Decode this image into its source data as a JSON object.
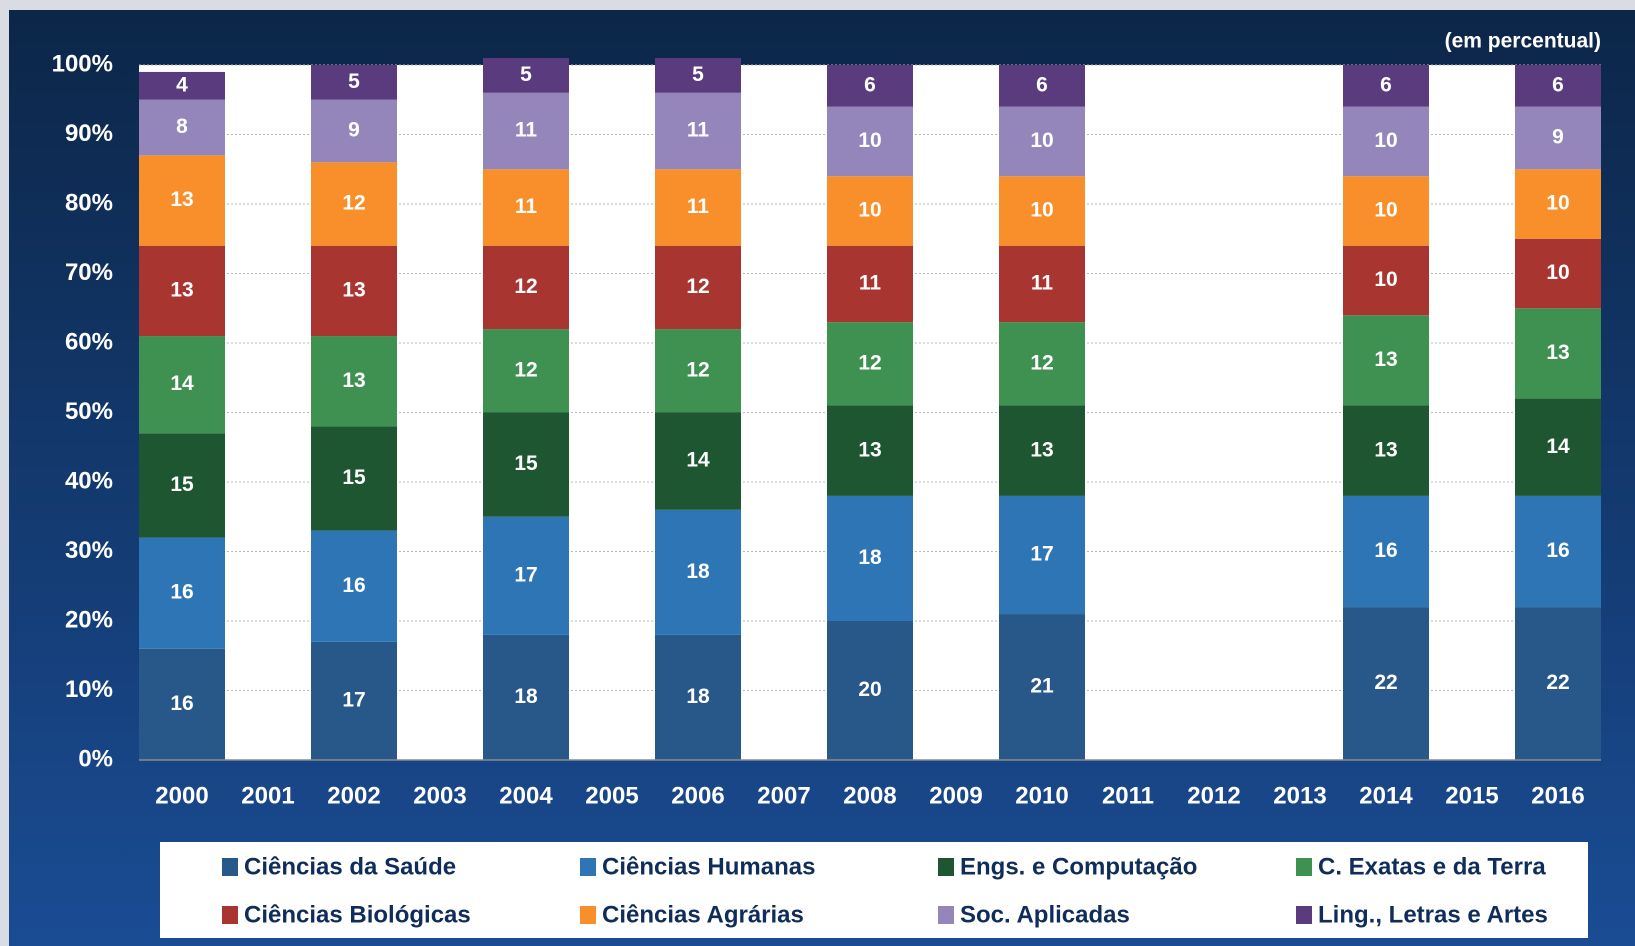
{
  "chart_data": {
    "type": "stacked_bar",
    "axis_note": "(em percentual)",
    "categories": [
      "2000",
      "2001",
      "2002",
      "2003",
      "2004",
      "2005",
      "2006",
      "2007",
      "2008",
      "2009",
      "2010",
      "2011",
      "2012",
      "2013",
      "2014",
      "2015",
      "2016"
    ],
    "series": [
      {
        "name": "Ciências da Saúde",
        "color": "#285889",
        "values": [
          16,
          null,
          17,
          null,
          18,
          null,
          18,
          null,
          20,
          null,
          21,
          null,
          null,
          null,
          22,
          null,
          22
        ]
      },
      {
        "name": "Ciências Humanas",
        "color": "#2e75b6",
        "values": [
          16,
          null,
          16,
          null,
          17,
          null,
          18,
          null,
          18,
          null,
          17,
          null,
          null,
          null,
          16,
          null,
          16
        ]
      },
      {
        "name": "Engs. e Computação",
        "color": "#1d5631",
        "values": [
          15,
          null,
          15,
          null,
          15,
          null,
          14,
          null,
          13,
          null,
          13,
          null,
          null,
          null,
          13,
          null,
          14
        ]
      },
      {
        "name": "C. Exatas e da Terra",
        "color": "#3e9150",
        "values": [
          14,
          null,
          13,
          null,
          12,
          null,
          12,
          null,
          12,
          null,
          12,
          null,
          null,
          null,
          13,
          null,
          13
        ]
      },
      {
        "name": "Ciências Biológicas",
        "color": "#a8352f",
        "values": [
          13,
          null,
          13,
          null,
          12,
          null,
          12,
          null,
          11,
          null,
          11,
          null,
          null,
          null,
          10,
          null,
          10
        ]
      },
      {
        "name": "Ciências Agrárias",
        "color": "#f88f2a",
        "values": [
          13,
          null,
          12,
          null,
          11,
          null,
          11,
          null,
          10,
          null,
          10,
          null,
          null,
          null,
          10,
          null,
          10
        ]
      },
      {
        "name": "Soc. Aplicadas",
        "color": "#9486ba",
        "values": [
          8,
          null,
          9,
          null,
          11,
          null,
          11,
          null,
          10,
          null,
          10,
          null,
          null,
          null,
          10,
          null,
          9
        ]
      },
      {
        "name": "Ling., Letras e Artes",
        "color": "#5a3c7e",
        "values": [
          4,
          null,
          5,
          null,
          5,
          null,
          5,
          null,
          6,
          null,
          6,
          null,
          null,
          null,
          6,
          null,
          6
        ]
      }
    ],
    "ylim": [
      0,
      100
    ],
    "yticks": [
      {
        "value": 0,
        "label": "0%"
      },
      {
        "value": 10,
        "label": "10%"
      },
      {
        "value": 20,
        "label": "20%"
      },
      {
        "value": 30,
        "label": "30%"
      },
      {
        "value": 40,
        "label": "40%"
      },
      {
        "value": 50,
        "label": "50%"
      },
      {
        "value": 60,
        "label": "60%"
      },
      {
        "value": 70,
        "label": "70%"
      },
      {
        "value": 80,
        "label": "80%"
      },
      {
        "value": 90,
        "label": "90%"
      },
      {
        "value": 100,
        "label": "100%"
      }
    ],
    "grid": true,
    "legend": "bottom"
  }
}
